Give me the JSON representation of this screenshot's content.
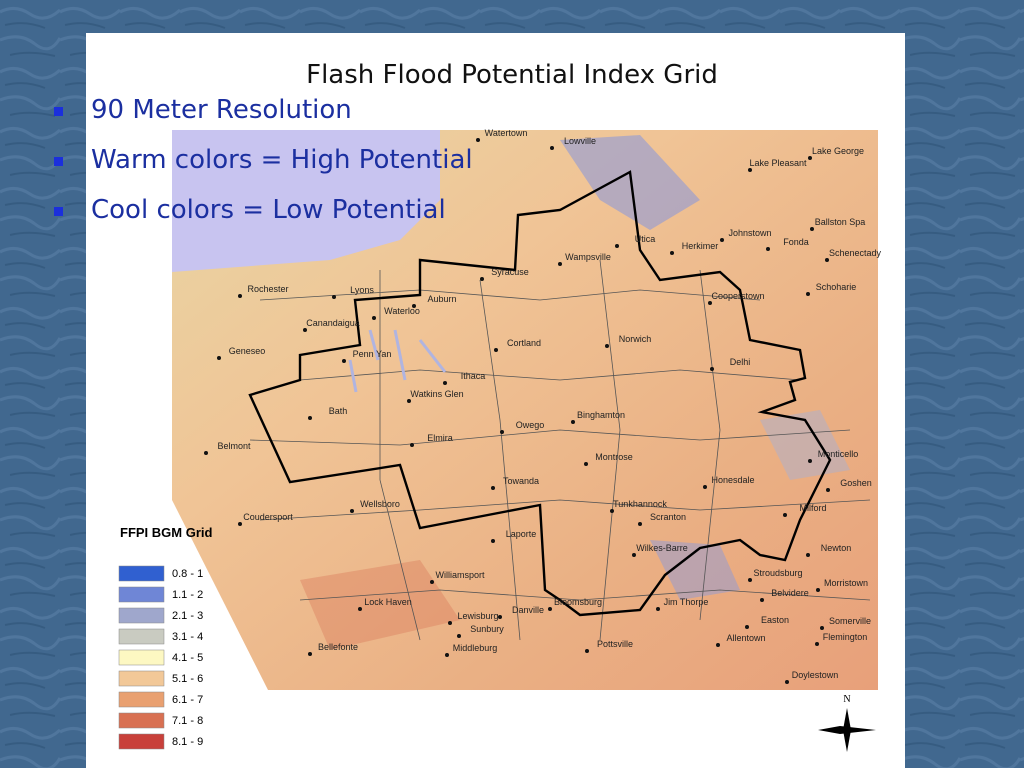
{
  "slide": {
    "bullets": [
      "90 Meter Resolution",
      "Warm colors = High Potential",
      "Cool colors = Low Potential"
    ]
  },
  "map": {
    "title": "Flash Flood Potential Index Grid",
    "legend": {
      "title": "FFPI BGM Grid",
      "items": [
        {
          "label": "0.8 - 1",
          "color": "#3060d0"
        },
        {
          "label": "1.1 - 2",
          "color": "#6f86d6"
        },
        {
          "label": "2.1 - 3",
          "color": "#9fa7cc"
        },
        {
          "label": "3.1 - 4",
          "color": "#c9cbc1"
        },
        {
          "label": "4.1 - 5",
          "color": "#fdf8c2"
        },
        {
          "label": "5.1 - 6",
          "color": "#f2c898"
        },
        {
          "label": "6.1 - 7",
          "color": "#e9a070"
        },
        {
          "label": "7.1 - 8",
          "color": "#d87052"
        },
        {
          "label": "8.1 - 9",
          "color": "#c8403a"
        }
      ]
    },
    "places": [
      "Watertown",
      "Lowville",
      "Lake Pleasant",
      "Lake George",
      "Ballston Spa",
      "Johnstown",
      "Fonda",
      "Schenectady",
      "Utica",
      "Herkimer",
      "Syracuse",
      "Wampsville",
      "Rochester",
      "Lyons",
      "Schoharie",
      "Auburn",
      "Cooperstown",
      "Waterloo",
      "Canandaigua",
      "Geneseo",
      "Penn Yan",
      "Cortland",
      "Norwich",
      "Delhi",
      "Ithaca",
      "Watkins Glen",
      "Bath",
      "Binghamton",
      "Owego",
      "Elmira",
      "Belmont",
      "Monticello",
      "Montrose",
      "Honesdale",
      "Goshen",
      "Towanda",
      "Wellsboro",
      "Tunkhannock",
      "Milford",
      "Coudersport",
      "Scranton",
      "Laporte",
      "Wilkes-Barre",
      "Newton",
      "Williamsport",
      "Stroudsburg",
      "Morristown",
      "Belvidere",
      "Bloomsburg",
      "Danville",
      "Lock Haven",
      "Jim Thorpe",
      "Lewisburg",
      "Easton",
      "Somerville",
      "Sunbury",
      "Allentown",
      "Flemington",
      "Pottsville",
      "Bellefonte",
      "Middleburg",
      "Doylestown"
    ],
    "north": "N"
  }
}
